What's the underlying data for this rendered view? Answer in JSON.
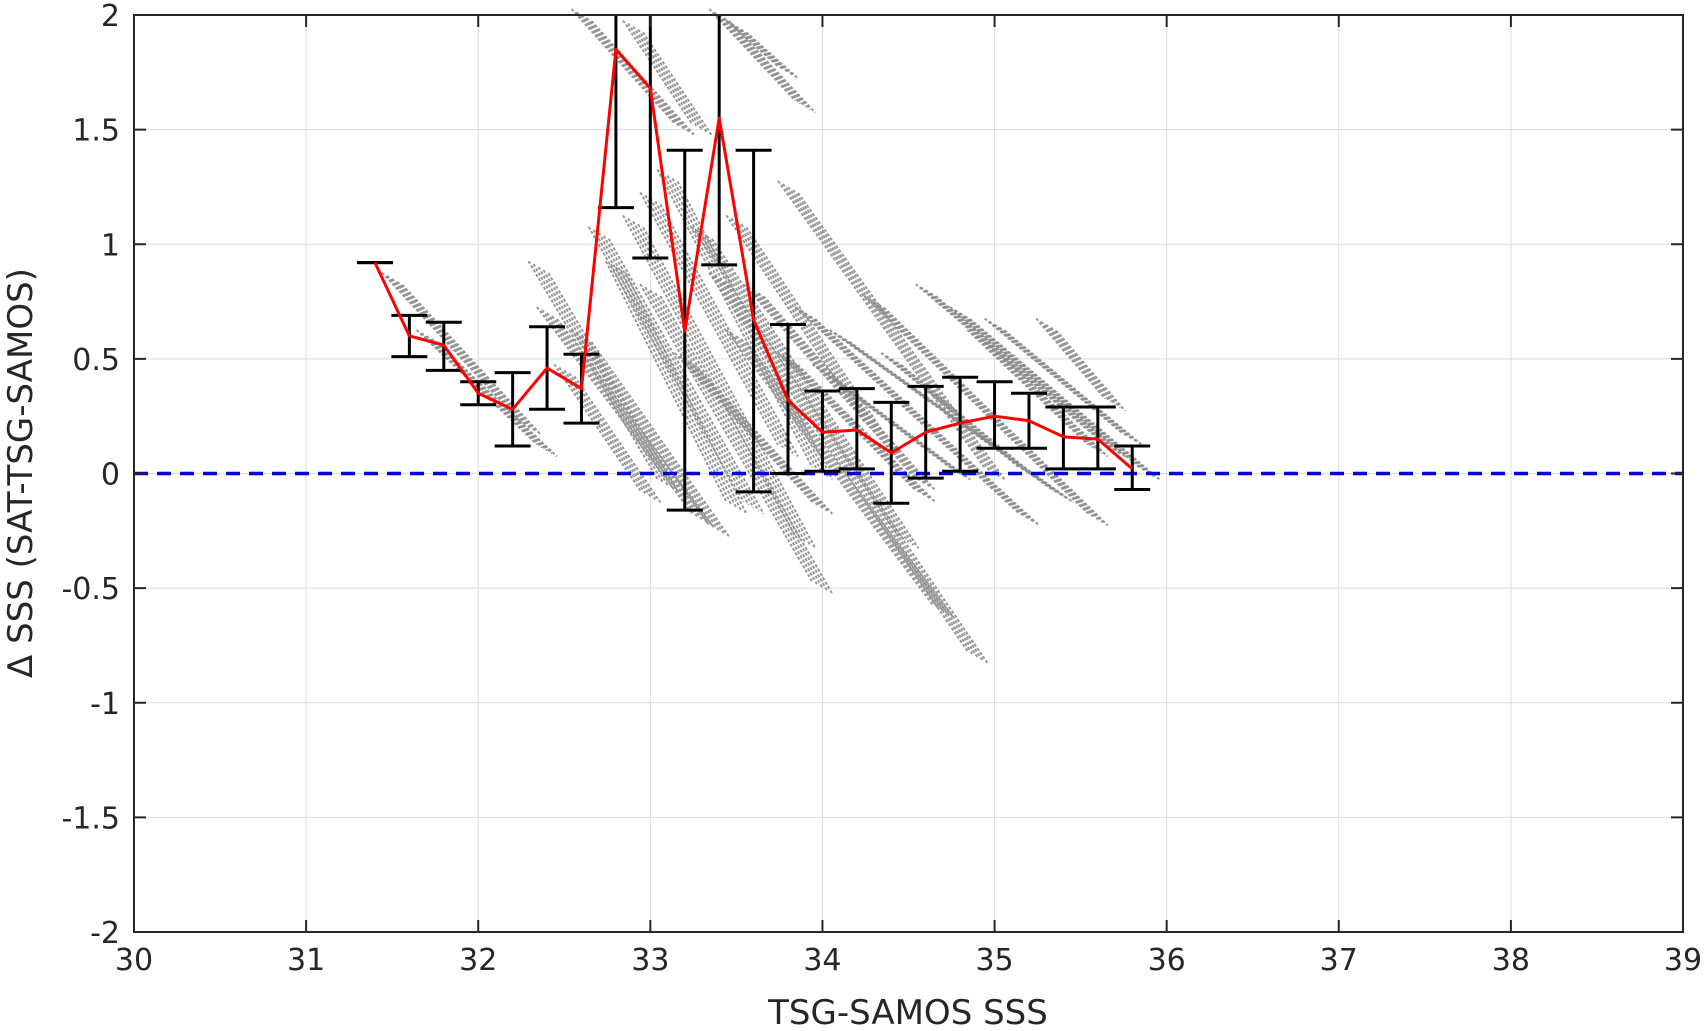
{
  "chart_data": {
    "type": "scatter",
    "title": "",
    "xlabel": "TSG-SAMOS SSS",
    "ylabel": "Δ SSS (SAT-TSG-SAMOS)",
    "xlim": [
      30,
      39
    ],
    "ylim": [
      -2,
      2
    ],
    "xticks": [
      30,
      31,
      32,
      33,
      34,
      35,
      36,
      37,
      38,
      39
    ],
    "yticks": [
      2,
      1.5,
      1,
      0.5,
      0,
      -0.5,
      -1,
      -1.5,
      -2
    ],
    "grid": true,
    "colors": {
      "scatter": "#8c8c8c",
      "mean_line": "#ff0000",
      "error_bars": "#000000",
      "zero_line": "#0000e0",
      "grid": "#dcdcdc",
      "axes": "#262626"
    },
    "reference_line": {
      "y": 0,
      "style": "dashed"
    },
    "mean_series": {
      "x": [
        31.4,
        31.6,
        31.8,
        32.0,
        32.2,
        32.4,
        32.6,
        32.8,
        33.0,
        33.2,
        33.4,
        33.6,
        33.8,
        34.0,
        34.2,
        34.4,
        34.6,
        34.8,
        35.0,
        35.2,
        35.4,
        35.6,
        35.8
      ],
      "y": [
        0.92,
        0.6,
        0.56,
        0.35,
        0.28,
        0.46,
        0.37,
        1.85,
        1.68,
        0.62,
        1.55,
        0.67,
        0.32,
        0.18,
        0.19,
        0.09,
        0.18,
        0.22,
        0.25,
        0.23,
        0.16,
        0.15,
        0.02
      ]
    },
    "error_bars": {
      "x": [
        31.4,
        31.6,
        31.8,
        32.0,
        32.2,
        32.4,
        32.6,
        32.8,
        33.0,
        33.2,
        33.4,
        33.6,
        33.8,
        34.0,
        34.2,
        34.4,
        34.6,
        34.8,
        35.0,
        35.2,
        35.4,
        35.6,
        35.8
      ],
      "low": [
        0.92,
        0.51,
        0.45,
        0.3,
        0.12,
        0.28,
        0.22,
        1.16,
        0.94,
        -0.16,
        0.91,
        -0.08,
        0.0,
        0.01,
        0.02,
        -0.13,
        -0.02,
        0.01,
        0.11,
        0.11,
        0.02,
        0.02,
        -0.07
      ],
      "high": [
        0.92,
        0.69,
        0.66,
        0.4,
        0.44,
        0.64,
        0.52,
        2.0,
        2.0,
        1.41,
        2.0,
        1.41,
        0.65,
        0.36,
        0.37,
        0.31,
        0.38,
        0.42,
        0.4,
        0.35,
        0.29,
        0.29,
        0.12
      ]
    },
    "scatter_streaks": [
      [
        31.5,
        0.85,
        32.3,
        0.2
      ],
      [
        31.7,
        0.6,
        32.4,
        0.1
      ],
      [
        32.35,
        0.9,
        33.1,
        -0.05
      ],
      [
        32.4,
        0.7,
        33.3,
        -0.2
      ],
      [
        32.6,
        0.6,
        33.4,
        -0.25
      ],
      [
        32.5,
        0.45,
        33.0,
        -0.1
      ],
      [
        32.7,
        1.05,
        33.6,
        -0.15
      ],
      [
        32.9,
        1.1,
        33.9,
        -0.3
      ],
      [
        32.8,
        0.9,
        33.5,
        -0.15
      ],
      [
        33.0,
        1.2,
        33.8,
        0.1
      ],
      [
        33.1,
        1.3,
        34.0,
        0.0
      ],
      [
        33.0,
        0.8,
        34.0,
        -0.5
      ],
      [
        33.3,
        1.05,
        34.5,
        -0.3
      ],
      [
        33.4,
        0.85,
        34.9,
        -0.8
      ],
      [
        33.5,
        0.6,
        34.7,
        -0.6
      ],
      [
        33.2,
        0.5,
        34.0,
        -0.15
      ],
      [
        33.6,
        0.8,
        34.6,
        -0.05
      ],
      [
        33.5,
        1.1,
        34.3,
        0.2
      ],
      [
        33.8,
        1.25,
        35.0,
        0.0
      ],
      [
        33.9,
        0.7,
        35.2,
        -0.2
      ],
      [
        34.1,
        0.6,
        35.4,
        -0.1
      ],
      [
        34.3,
        0.75,
        35.6,
        -0.2
      ],
      [
        34.6,
        0.8,
        35.7,
        0.1
      ],
      [
        34.8,
        0.7,
        35.9,
        0.0
      ],
      [
        34.9,
        0.6,
        35.6,
        0.1
      ],
      [
        35.0,
        0.65,
        35.8,
        0.15
      ],
      [
        35.3,
        0.65,
        35.7,
        0.3
      ],
      [
        33.8,
        0.5,
        34.6,
        -0.1
      ],
      [
        34.0,
        0.45,
        34.8,
        0.0
      ],
      [
        34.4,
        0.5,
        35.2,
        0.0
      ],
      [
        32.6,
        2.0,
        33.2,
        1.5
      ],
      [
        33.4,
        2.0,
        33.9,
        1.6
      ],
      [
        32.9,
        1.95,
        33.3,
        1.5
      ],
      [
        33.5,
        1.95,
        33.8,
        1.75
      ]
    ]
  }
}
